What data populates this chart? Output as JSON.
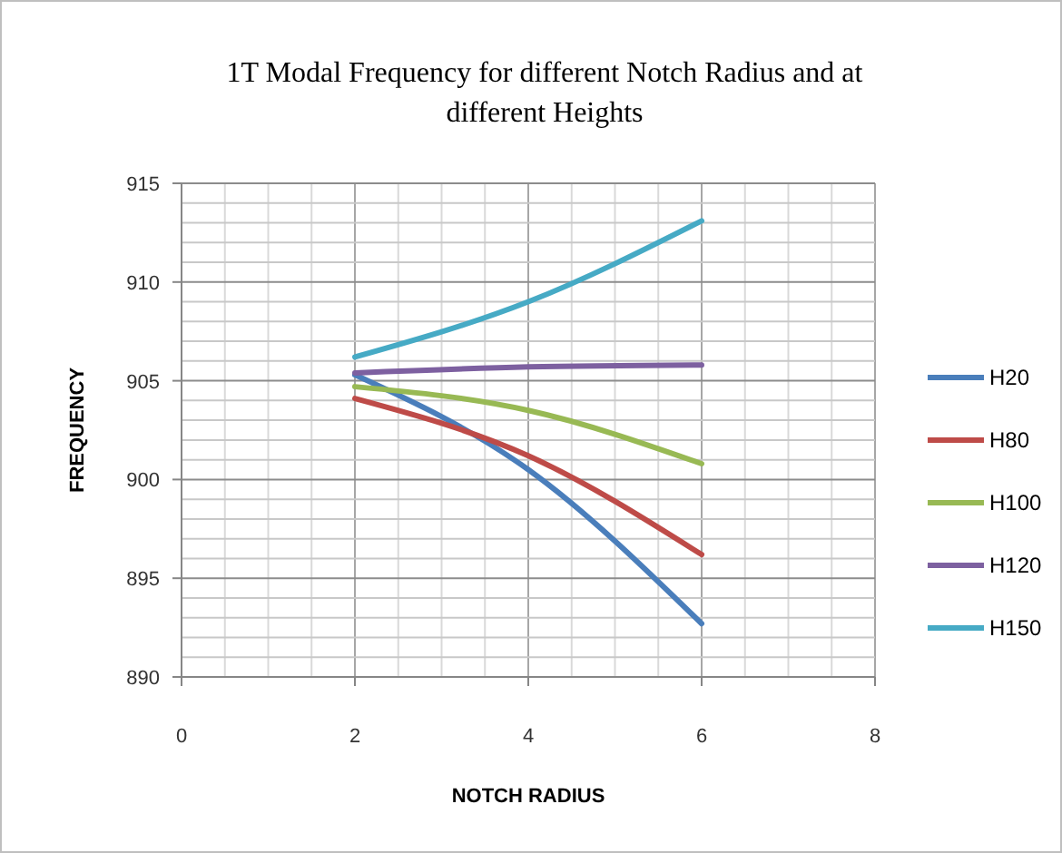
{
  "chart_data": {
    "type": "line",
    "title": "1T Modal Frequency for different Notch Radius and at different Heights",
    "xlabel": "NOTCH RADIUS",
    "ylabel": "FREQUENCY",
    "xlim": [
      0,
      8
    ],
    "xticks": [
      0,
      {
        "value": 0.5,
        "label": null
      },
      {
        "value": 1,
        "label": null
      },
      {
        "value": 1.5,
        "label": null
      },
      2,
      {
        "value": 2.5,
        "label": null
      },
      {
        "value": 3,
        "label": null
      },
      {
        "value": 3.5,
        "label": null
      },
      4,
      {
        "value": 4.5,
        "label": null
      },
      {
        "value": 5,
        "label": null
      },
      {
        "value": 5.5,
        "label": null
      },
      6,
      {
        "value": 6.5,
        "label": null
      },
      {
        "value": 7,
        "label": null
      },
      {
        "value": 7.5,
        "label": null
      },
      8
    ],
    "ylim": [
      890,
      915
    ],
    "yticks": [
      890,
      {
        "value": 891,
        "label": null
      },
      {
        "value": 892,
        "label": null
      },
      {
        "value": 893,
        "label": null
      },
      {
        "value": 894,
        "label": null
      },
      895,
      {
        "value": 896,
        "label": null
      },
      {
        "value": 897,
        "label": null
      },
      {
        "value": 898,
        "label": null
      },
      {
        "value": 899,
        "label": null
      },
      900,
      {
        "value": 901,
        "label": null
      },
      {
        "value": 902,
        "label": null
      },
      {
        "value": 903,
        "label": null
      },
      {
        "value": 904,
        "label": null
      },
      905,
      {
        "value": 906,
        "label": null
      },
      {
        "value": 907,
        "label": null
      },
      {
        "value": 908,
        "label": null
      },
      {
        "value": 909,
        "label": null
      },
      910,
      {
        "value": 911,
        "label": null
      },
      {
        "value": 912,
        "label": null
      },
      {
        "value": 913,
        "label": null
      },
      {
        "value": 914,
        "label": null
      },
      915
    ],
    "grid": true,
    "legend": "right",
    "marker": "none",
    "line_style": "solid",
    "x": [
      2,
      4,
      6
    ],
    "series": [
      {
        "name": "H20",
        "color": "#4a7ebb",
        "values": [
          905.3,
          900.5,
          892.7
        ]
      },
      {
        "name": "H80",
        "color": "#be4b48",
        "values": [
          904.1,
          901.2,
          896.2
        ]
      },
      {
        "name": "H100",
        "color": "#98b954",
        "values": [
          904.7,
          903.5,
          900.8
        ]
      },
      {
        "name": "H120",
        "color": "#7d60a0",
        "values": [
          905.4,
          905.7,
          905.8
        ]
      },
      {
        "name": "H150",
        "color": "#46aac5",
        "values": [
          906.2,
          909.0,
          913.1
        ]
      }
    ]
  }
}
